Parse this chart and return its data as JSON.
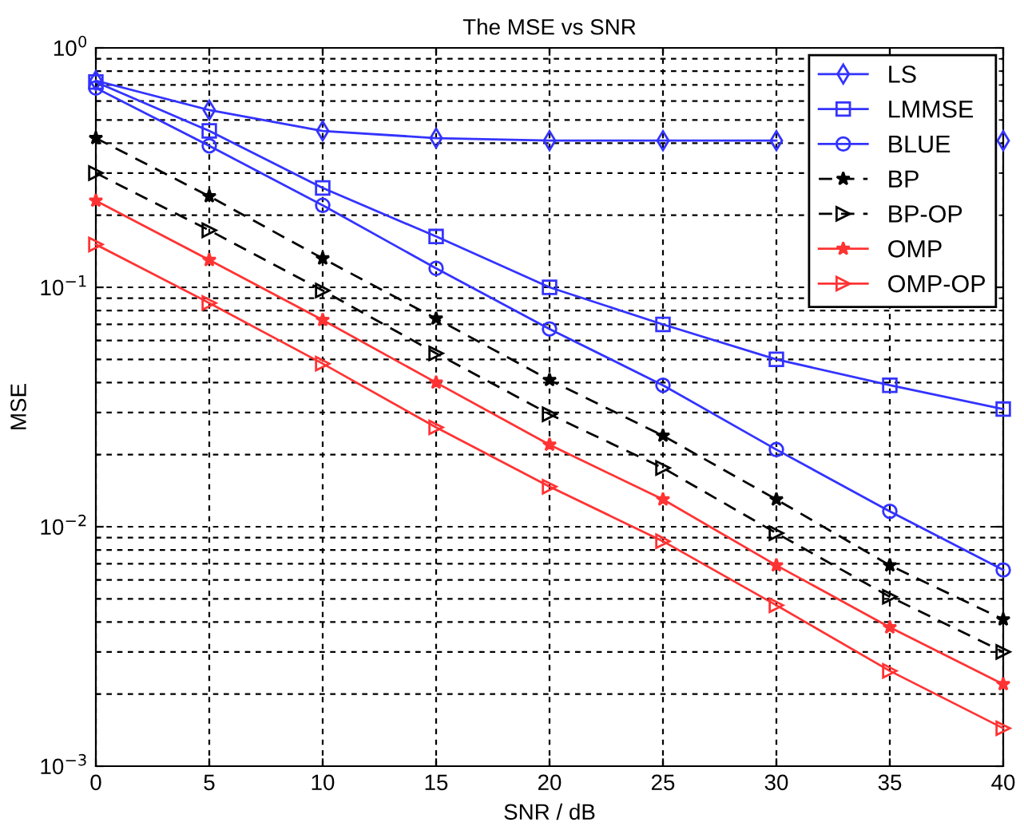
{
  "chart_data": {
    "type": "line",
    "title": "The MSE vs SNR",
    "xlabel": "SNR / dB",
    "ylabel": "MSE",
    "x": [
      0,
      5,
      10,
      15,
      20,
      25,
      30,
      35,
      40
    ],
    "series": [
      {
        "name": "LS",
        "color": "#3333ff",
        "marker": "diamond",
        "line_style": "solid",
        "values": [
          0.73,
          0.55,
          0.45,
          0.42,
          0.41,
          0.41,
          0.41,
          null,
          0.41
        ]
      },
      {
        "name": "LMMSE",
        "color": "#3333ff",
        "marker": "square",
        "line_style": "solid",
        "values": [
          0.72,
          0.45,
          0.26,
          0.163,
          0.1,
          0.07,
          0.05,
          0.039,
          0.031
        ]
      },
      {
        "name": "BLUE",
        "color": "#3333ff",
        "marker": "circle",
        "line_style": "solid",
        "values": [
          0.68,
          0.39,
          0.22,
          0.12,
          0.067,
          0.039,
          0.021,
          0.0116,
          0.0066
        ]
      },
      {
        "name": "BP",
        "color": "#000000",
        "marker": "star",
        "line_style": "dashed",
        "values": [
          0.42,
          0.24,
          0.132,
          0.074,
          0.041,
          0.024,
          0.013,
          0.0069,
          0.0041
        ]
      },
      {
        "name": "BP-OP",
        "color": "#000000",
        "marker": "triangle",
        "line_style": "dashed",
        "values": [
          0.3,
          0.173,
          0.097,
          0.053,
          0.0295,
          0.0176,
          0.0094,
          0.0051,
          0.003
        ]
      },
      {
        "name": "OMP",
        "color": "#ff3333",
        "marker": "star",
        "line_style": "solid",
        "values": [
          0.23,
          0.13,
          0.073,
          0.04,
          0.022,
          0.013,
          0.0069,
          0.0038,
          0.0022
        ]
      },
      {
        "name": "OMP-OP",
        "color": "#ff3333",
        "marker": "triangle",
        "line_style": "solid",
        "values": [
          0.151,
          0.086,
          0.048,
          0.026,
          0.0147,
          0.0087,
          0.0047,
          0.0025,
          0.00144
        ]
      }
    ],
    "log": "y",
    "xlim": [
      0,
      40
    ],
    "ylim": [
      0.001,
      1
    ],
    "xticks": [
      0,
      5,
      10,
      15,
      20,
      25,
      30,
      35,
      40
    ],
    "yticks": [
      {
        "value": 0.001,
        "label": "10$^{−3}$"
      },
      {
        "value": 0.01,
        "label": "10$^{−2}$"
      },
      {
        "value": 0.1,
        "label": "10$^{−1}$"
      },
      {
        "value": 1,
        "label": "10$^{0}$"
      }
    ],
    "grid": true,
    "legend": "top right"
  }
}
